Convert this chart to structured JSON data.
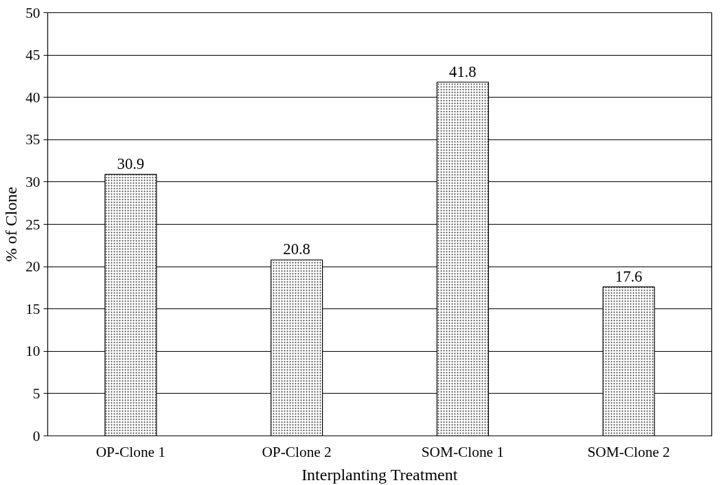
{
  "chart_data": {
    "type": "bar",
    "xlabel": "Interplanting Treatment",
    "ylabel": "% of Clone",
    "categories": [
      "OP-Clone 1",
      "OP-Clone 2",
      "SOM-Clone 1",
      "SOM-Clone 2"
    ],
    "values": [
      30.9,
      20.8,
      41.8,
      17.6
    ],
    "color": "#ffffff",
    "ylim": [
      0,
      50
    ],
    "yticks": [
      0,
      5,
      10,
      15,
      20,
      25,
      30,
      35,
      40,
      45,
      50
    ],
    "grid": "y",
    "data_labels": true
  }
}
